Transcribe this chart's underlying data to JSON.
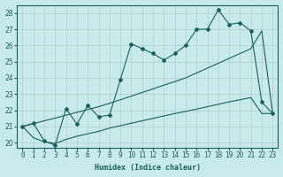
{
  "background_color": "#c8eaea",
  "grid_color": "#b0cccc",
  "line_color": "#1a6060",
  "xlabel": "Humidex (Indice chaleur)",
  "xlim": [
    -0.5,
    23.5
  ],
  "ylim": [
    19.7,
    28.5
  ],
  "yticks": [
    20,
    21,
    22,
    23,
    24,
    25,
    26,
    27,
    28
  ],
  "xticks": [
    0,
    1,
    2,
    3,
    4,
    5,
    6,
    7,
    8,
    9,
    10,
    11,
    12,
    13,
    14,
    15,
    16,
    17,
    18,
    19,
    20,
    21,
    22,
    23
  ],
  "line1_x": [
    0,
    1,
    2,
    3,
    4,
    5,
    6,
    7,
    8,
    9,
    10,
    11,
    12,
    13,
    14,
    15,
    16,
    17,
    18,
    19,
    20,
    21,
    22,
    23
  ],
  "line1_y": [
    21.0,
    20.3,
    20.05,
    19.95,
    20.2,
    20.4,
    20.55,
    20.7,
    20.9,
    21.05,
    21.2,
    21.35,
    21.5,
    21.65,
    21.8,
    21.93,
    22.07,
    22.22,
    22.37,
    22.52,
    22.65,
    22.78,
    21.8,
    21.8
  ],
  "line2_x": [
    0,
    1,
    2,
    3,
    4,
    5,
    6,
    7,
    8,
    9,
    10,
    11,
    12,
    13,
    14,
    15,
    16,
    17,
    18,
    19,
    20,
    21,
    22,
    23
  ],
  "line2_y": [
    21.0,
    21.17,
    21.35,
    21.52,
    21.7,
    21.87,
    22.05,
    22.22,
    22.43,
    22.65,
    22.87,
    23.1,
    23.32,
    23.55,
    23.77,
    24.0,
    24.3,
    24.6,
    24.9,
    25.2,
    25.5,
    25.8,
    26.9,
    21.8
  ],
  "line3_x": [
    0,
    1,
    2,
    3,
    4,
    5,
    6,
    7,
    8,
    9,
    10,
    11,
    12,
    13,
    14,
    15,
    16,
    17,
    18,
    19,
    20,
    21,
    22,
    23
  ],
  "line3_y": [
    21.0,
    21.2,
    20.1,
    19.85,
    22.1,
    21.15,
    22.3,
    21.6,
    21.7,
    23.9,
    26.1,
    25.8,
    25.5,
    25.1,
    25.5,
    26.0,
    27.0,
    27.0,
    28.2,
    27.3,
    27.4,
    26.9,
    22.5,
    21.8
  ],
  "tick_fontsize": 5.5,
  "xlabel_fontsize": 6.0
}
